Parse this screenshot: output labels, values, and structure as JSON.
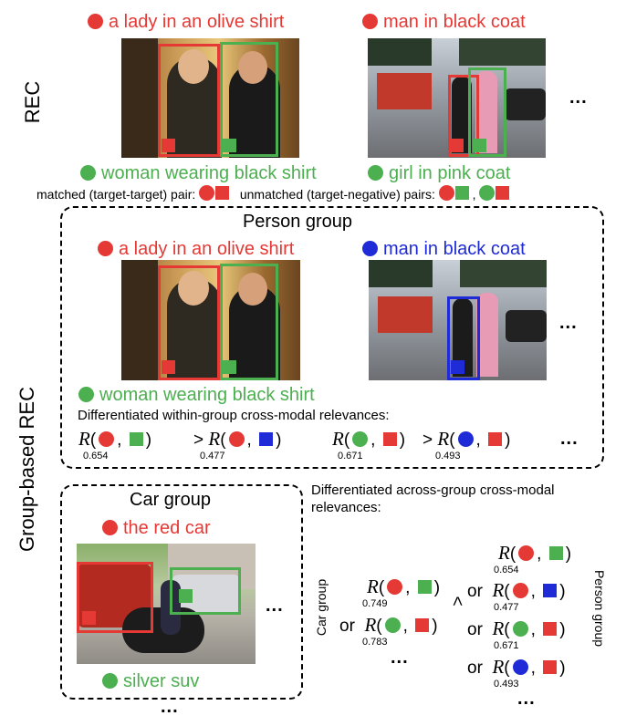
{
  "labels": {
    "rec": "REC",
    "group_rec": "Group-based REC",
    "person_group": "Person group",
    "car_group": "Car group",
    "car_group_vertical": "Car group",
    "person_group_vertical": "Person group",
    "ellipsis": "...",
    "or": "or",
    "gt": ">",
    "R": "R"
  },
  "rec_section": {
    "img1_top_caption": "a lady in an olive shirt",
    "img1_bottom_caption": "woman wearing black shirt",
    "img2_top_caption": "man in black coat",
    "img2_bottom_caption": "girl in pink coat",
    "matched_text": "matched (target-target) pair:",
    "unmatched_text": "unmatched (target-negative) pairs:",
    "comma": ","
  },
  "person_group": {
    "img1_top_caption": "a lady in an olive shirt",
    "img1_bottom_caption": "woman wearing black shirt",
    "img2_top_caption": "man in black coat",
    "within_heading": "Differentiated within-group cross-modal relevances:",
    "scores": [
      "0.654",
      "0.477",
      "0.671",
      "0.493"
    ]
  },
  "car_group": {
    "top_caption": "the red car",
    "bottom_caption": "silver suv"
  },
  "across": {
    "heading_line1": "Differentiated across-group cross-modal",
    "heading_line2": "relevances:",
    "car_scores": [
      "0.749",
      "0.783"
    ],
    "person_scores": [
      "0.654",
      "0.477",
      "0.671",
      "0.493"
    ]
  },
  "colors": {
    "red": "#e53935",
    "green": "#4caf50",
    "blue": "#1e2bd6"
  }
}
